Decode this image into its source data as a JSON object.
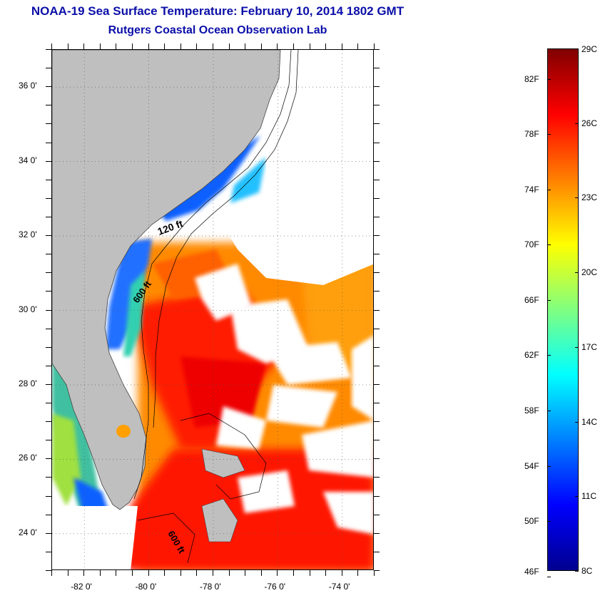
{
  "header": {
    "title": "NOAA-19 Sea Surface Temperature:  February 10, 2014 1802 GMT",
    "subtitle": "Rutgers Coastal Ocean Observation Lab"
  },
  "map": {
    "lon_range": [
      -83,
      -73
    ],
    "lat_range": [
      23,
      37
    ],
    "lat_ticks": [
      {
        "value": 36,
        "label": "36 0'"
      },
      {
        "value": 34,
        "label": "34 0'"
      },
      {
        "value": 32,
        "label": "32 0'"
      },
      {
        "value": 30,
        "label": "30 0'"
      },
      {
        "value": 28,
        "label": "28 0'"
      },
      {
        "value": 26,
        "label": "26 0'"
      },
      {
        "value": 24,
        "label": "24 0'"
      }
    ],
    "lon_ticks": [
      {
        "value": -82,
        "label": "-82 0'"
      },
      {
        "value": -80,
        "label": "-80 0'"
      },
      {
        "value": -78,
        "label": "-78 0'"
      },
      {
        "value": -76,
        "label": "-76 0'"
      },
      {
        "value": -74,
        "label": "-74 0'"
      }
    ],
    "grid": "dotted",
    "contour_labels": [
      "120 ft",
      "600 ft",
      "600 ft"
    ],
    "land_color": "#bfbfbf",
    "cloud_color": "#ffffff"
  },
  "colorbar": {
    "celsius_labels": [
      {
        "value": 29,
        "label": "29C"
      },
      {
        "value": 26,
        "label": "26C"
      },
      {
        "value": 23,
        "label": "23C"
      },
      {
        "value": 20,
        "label": "20C"
      },
      {
        "value": 17,
        "label": "17C"
      },
      {
        "value": 14,
        "label": "14C"
      },
      {
        "value": 11,
        "label": "11C"
      },
      {
        "value": 8,
        "label": "8C"
      }
    ],
    "fahrenheit_labels": [
      {
        "value": 82,
        "label": "82F"
      },
      {
        "value": 78,
        "label": "78F"
      },
      {
        "value": 74,
        "label": "74F"
      },
      {
        "value": 70,
        "label": "70F"
      },
      {
        "value": 66,
        "label": "66F"
      },
      {
        "value": 62,
        "label": "62F"
      },
      {
        "value": 58,
        "label": "58F"
      },
      {
        "value": 54,
        "label": "54F"
      },
      {
        "value": 50,
        "label": "50F"
      },
      {
        "value": 46,
        "label": "46F"
      }
    ],
    "range_c": [
      8,
      29
    ],
    "colors": [
      "#00008f",
      "#0000ff",
      "#0080ff",
      "#00ffff",
      "#80ff80",
      "#ffff00",
      "#ff8000",
      "#ff0000",
      "#800000"
    ]
  }
}
